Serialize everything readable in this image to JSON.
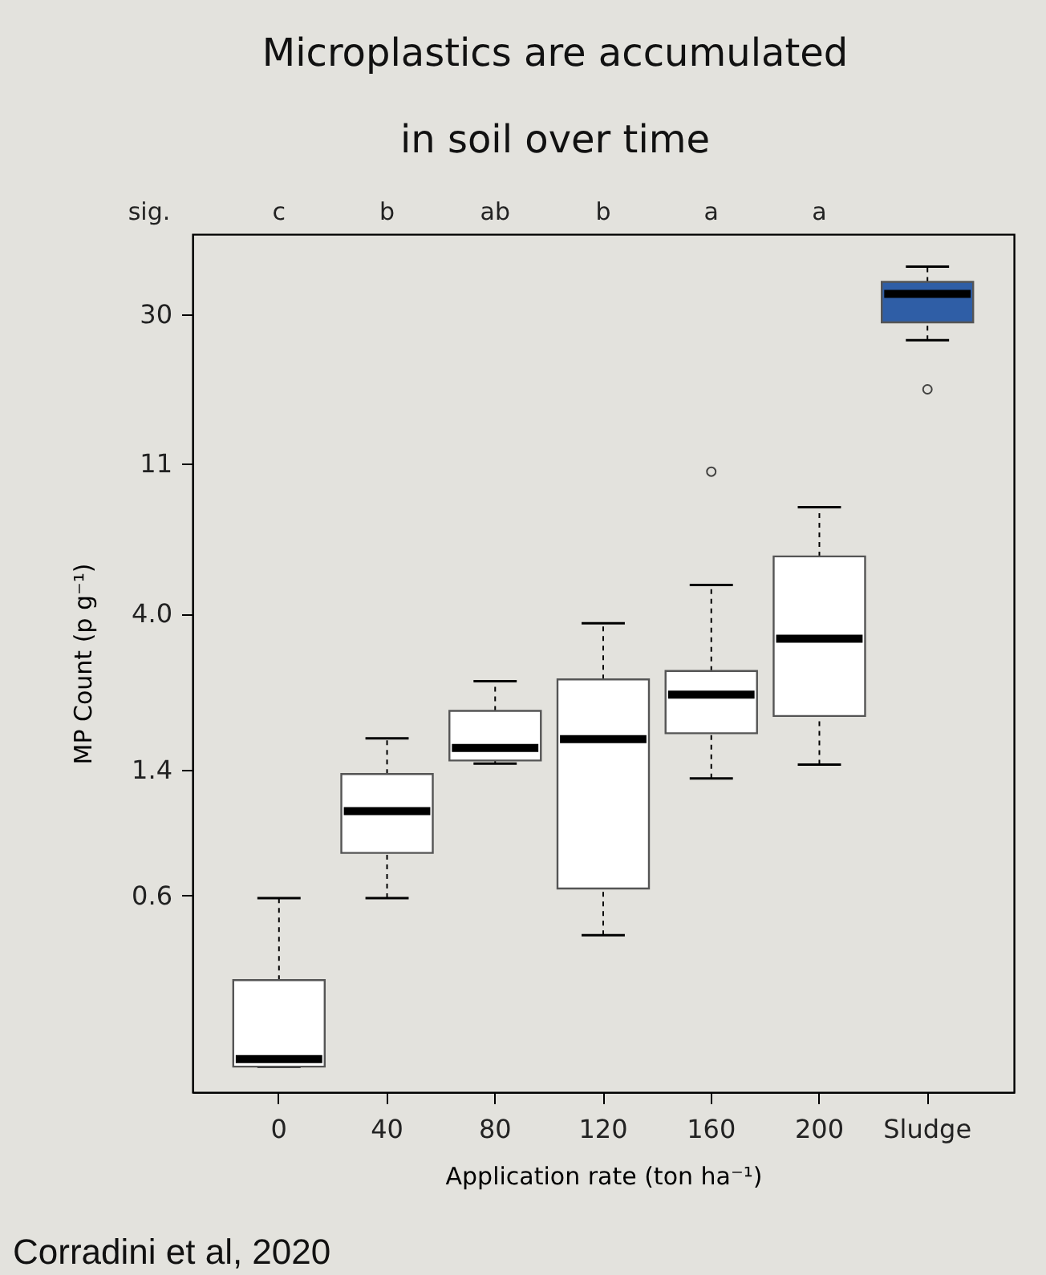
{
  "chart_data": {
    "type": "box",
    "title": "Microplastics are accumulated\nin soil over time",
    "xlabel": "Application rate (ton ha⁻¹)",
    "ylabel": "MP Count (p g⁻¹)",
    "categories": [
      "0",
      "40",
      "80",
      "120",
      "160",
      "200",
      "Sludge"
    ],
    "boxes": [
      {
        "low": 0.19,
        "q1": 0.19,
        "median": 0.2,
        "q3": 0.34,
        "high": 0.59
      },
      {
        "low": 0.59,
        "q1": 0.8,
        "median": 1.06,
        "q3": 1.36,
        "high": 1.73
      },
      {
        "low": 1.46,
        "q1": 1.49,
        "median": 1.62,
        "q3": 2.08,
        "high": 2.54
      },
      {
        "low": 0.46,
        "q1": 0.63,
        "median": 1.72,
        "q3": 2.57,
        "high": 3.75
      },
      {
        "low": 1.32,
        "q1": 1.79,
        "median": 2.32,
        "q3": 2.72,
        "high": 4.85,
        "outliers": [
          10.4
        ]
      },
      {
        "low": 1.45,
        "q1": 2.01,
        "median": 3.38,
        "q3": 5.88,
        "high": 8.19
      },
      {
        "low": 25.2,
        "q1": 28.4,
        "median": 34.4,
        "q3": 37.3,
        "high": 41.3,
        "outliers": [
          18.1
        ]
      }
    ],
    "colors": [
      "#ffffff",
      "#ffffff",
      "#ffffff",
      "#ffffff",
      "#ffffff",
      "#ffffff",
      "#2f5ea6"
    ],
    "log": true,
    "ylim": [
      0.16,
      51.4
    ],
    "yticks": [
      0.6,
      1.4,
      {
        "value": 4,
        "label": "4.0"
      },
      11,
      30
    ],
    "grid": false,
    "annotations": [
      "sig.",
      "c",
      "b",
      "ab",
      "b",
      "a",
      "a",
      "Corradini et al, 2020"
    ]
  }
}
